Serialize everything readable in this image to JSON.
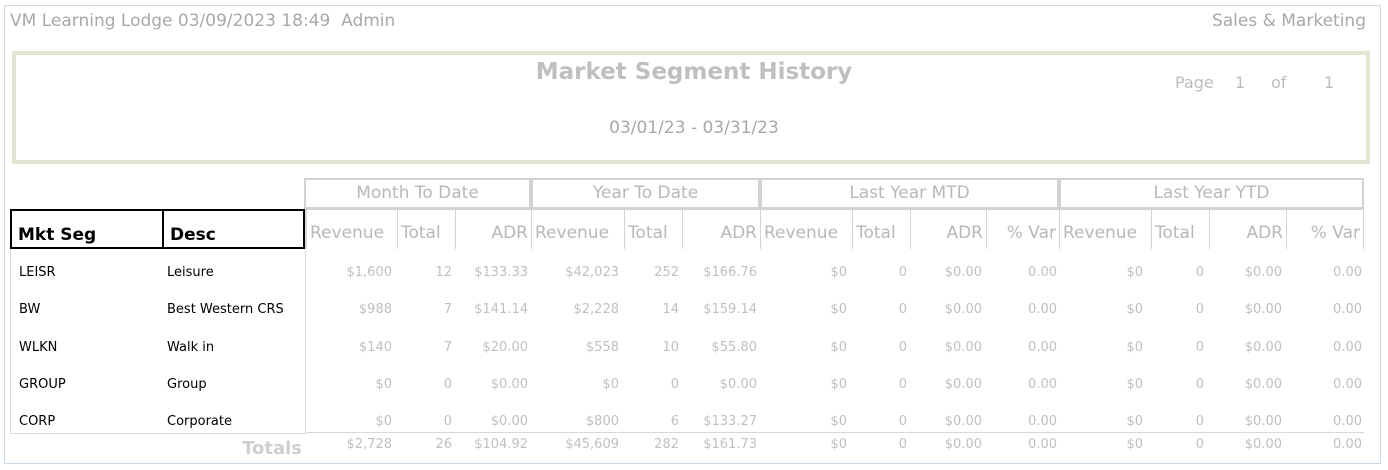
{
  "header": {
    "system_info": "VM Learning Lodge 03/09/2023 18:49  Admin",
    "department": "Sales & Marketing"
  },
  "report": {
    "title": "Market Segment History",
    "date_range": "03/01/23 - 03/31/23",
    "page_label": "Page",
    "page_current": "1",
    "of_label": "of",
    "page_total": "1"
  },
  "groups": [
    "Month To Date",
    "Year To Date",
    "Last Year MTD",
    "Last Year YTD"
  ],
  "columns": {
    "mkt_seg": "Mkt Seg",
    "desc": "Desc",
    "headers": [
      "Revenue",
      "Total",
      "ADR",
      "Revenue",
      "Total",
      "ADR",
      "Revenue",
      "Total",
      "ADR",
      "% Var",
      "Revenue",
      "Total",
      "ADR",
      "% Var"
    ]
  },
  "rows": [
    {
      "code": "LEISR",
      "desc": "Leisure",
      "values": [
        "$1,600",
        "12",
        "$133.33",
        "$42,023",
        "252",
        "$166.76",
        "$0",
        "0",
        "$0.00",
        "0.00",
        "$0",
        "0",
        "$0.00",
        "0.00"
      ]
    },
    {
      "code": "BW",
      "desc": "Best Western CRS",
      "values": [
        "$988",
        "7",
        "$141.14",
        "$2,228",
        "14",
        "$159.14",
        "$0",
        "0",
        "$0.00",
        "0.00",
        "$0",
        "0",
        "$0.00",
        "0.00"
      ]
    },
    {
      "code": "WLKN",
      "desc": "Walk in",
      "values": [
        "$140",
        "7",
        "$20.00",
        "$558",
        "10",
        "$55.80",
        "$0",
        "0",
        "$0.00",
        "0.00",
        "$0",
        "0",
        "$0.00",
        "0.00"
      ]
    },
    {
      "code": "GROUP",
      "desc": "Group",
      "values": [
        "$0",
        "0",
        "$0.00",
        "$0",
        "0",
        "$0.00",
        "$0",
        "0",
        "$0.00",
        "0.00",
        "$0",
        "0",
        "$0.00",
        "0.00"
      ]
    },
    {
      "code": "CORP",
      "desc": "Corporate",
      "values": [
        "$0",
        "0",
        "$0.00",
        "$800",
        "6",
        "$133.27",
        "$0",
        "0",
        "$0.00",
        "0.00",
        "$0",
        "0",
        "$0.00",
        "0.00"
      ]
    }
  ],
  "totals": {
    "label": "Totals",
    "values": [
      "$2,728",
      "26",
      "$104.92",
      "$45,609",
      "282",
      "$161.73",
      "$0",
      "0",
      "$0.00",
      "0.00",
      "$0",
      "0",
      "$0.00",
      "0.00"
    ]
  }
}
